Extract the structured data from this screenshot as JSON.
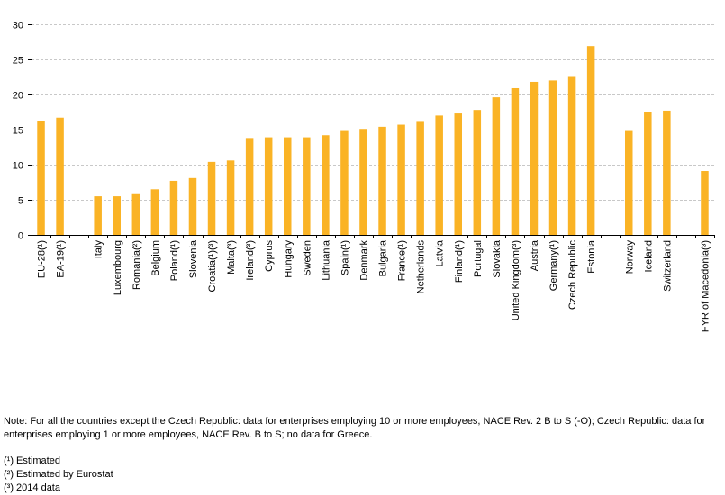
{
  "chart_data": {
    "type": "bar",
    "categories": [
      "EU-28(¹)",
      "EA-19(¹)",
      "",
      "Italy",
      "Luxembourg",
      "Romania(²)",
      "Belgium",
      "Poland(¹)",
      "Slovenia",
      "Croatia(¹)(³)",
      "Malta(³)",
      "Ireland(³)",
      "Cyprus",
      "Hungary",
      "Sweden",
      "Lithuania",
      "Spain(¹)",
      "Denmark",
      "Bulgaria",
      "France(¹)",
      "Netherlands",
      "Latvia",
      "Finland(¹)",
      "Portugal",
      "Slovakia",
      "United Kingdom(³)",
      "Austria",
      "Germany(¹)",
      "Czech Republic",
      "Estonia",
      "",
      "Norway",
      "Iceland",
      "Switzerland",
      "",
      "FYR of Macedonia(³)"
    ],
    "values": [
      16.2,
      16.7,
      null,
      5.5,
      5.5,
      5.8,
      6.5,
      7.7,
      8.1,
      10.4,
      10.6,
      13.8,
      13.9,
      13.9,
      13.9,
      14.2,
      14.8,
      15.1,
      15.4,
      15.7,
      16.1,
      17.0,
      17.3,
      17.8,
      19.6,
      20.9,
      21.8,
      22.0,
      22.5,
      26.9,
      null,
      14.8,
      17.5,
      17.7,
      null,
      9.1
    ],
    "ylim": [
      0,
      30
    ],
    "yticks": [
      0,
      5,
      10,
      15,
      20,
      25,
      30
    ],
    "grid": true,
    "bar_color": "#FAB325",
    "gridline_color": "#C8C8C8",
    "axis_color": "#000000"
  },
  "notes": {
    "note": "Note: For all the countries except the Czech Republic: data for enterprises employing 10 or more employees, NACE Rev. 2 B to S (-O); Czech Republic: data for enterprises employing 1 or more employees, NACE Rev. B to S; no data for Greece.",
    "footnotes": [
      "(¹) Estimated",
      "(²) Estimated by Eurostat",
      "(³) 2014 data"
    ]
  }
}
